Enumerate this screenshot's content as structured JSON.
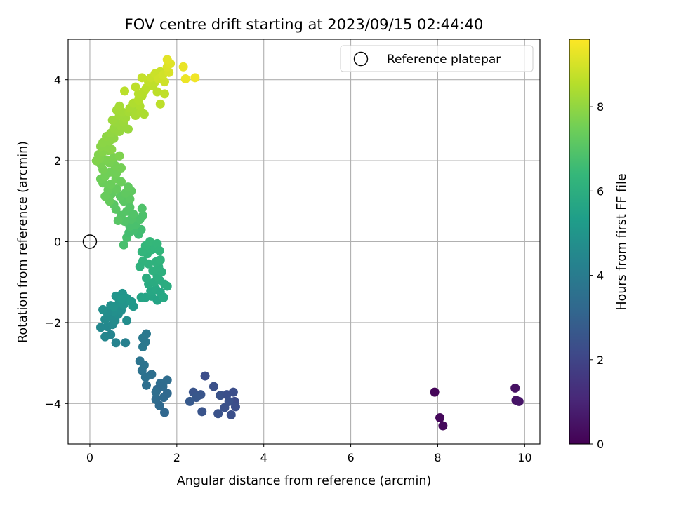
{
  "chart_data": {
    "type": "scatter",
    "title": "FOV centre drift starting at 2023/09/15 02:44:40",
    "xlabel": "Angular distance from reference (arcmin)",
    "ylabel": "Rotation from reference (arcmin)",
    "xlim": [
      -0.5,
      10.35
    ],
    "ylim": [
      -5.0,
      5.0
    ],
    "xticks": [
      0,
      2,
      4,
      6,
      8,
      10
    ],
    "yticks": [
      -4,
      -2,
      0,
      2,
      4
    ],
    "xtick_labels": [
      "0",
      "2",
      "4",
      "6",
      "8",
      "10"
    ],
    "ytick_labels": [
      "−4",
      "−2",
      "0",
      "2",
      "4"
    ],
    "grid": true,
    "legend": {
      "placement": "top-right",
      "entries": [
        {
          "label": "Reference platepar",
          "marker": "open-circle"
        }
      ]
    },
    "reference_point": {
      "x": 0,
      "y": 0
    },
    "colorbar": {
      "label": "Hours from first FF file",
      "colormap": "viridis",
      "range": [
        0,
        9.6
      ],
      "ticks": [
        0,
        2,
        4,
        6,
        8
      ],
      "tick_labels": [
        "0",
        "2",
        "4",
        "6",
        "8"
      ]
    },
    "viridis_stops": [
      "#440154",
      "#482878",
      "#3e4989",
      "#31688e",
      "#26828e",
      "#1f9e89",
      "#35b779",
      "#6ece58",
      "#b5de2b",
      "#fde725"
    ],
    "points": [
      [
        7.93,
        -3.72,
        0.15
      ],
      [
        8.05,
        -4.35,
        0.2
      ],
      [
        8.12,
        -4.55,
        0.25
      ],
      [
        9.78,
        -3.62,
        0.45
      ],
      [
        9.8,
        -3.92,
        0.5
      ],
      [
        9.87,
        -3.95,
        0.55
      ],
      [
        2.65,
        -3.32,
        2.3
      ],
      [
        2.85,
        -3.58,
        2.4
      ],
      [
        2.38,
        -3.72,
        2.5
      ],
      [
        2.55,
        -3.78,
        2.55
      ],
      [
        2.45,
        -3.85,
        2.6
      ],
      [
        2.3,
        -3.95,
        2.7
      ],
      [
        2.58,
        -4.2,
        2.5
      ],
      [
        3.0,
        -3.8,
        2.45
      ],
      [
        3.15,
        -3.78,
        2.35
      ],
      [
        3.3,
        -3.72,
        2.3
      ],
      [
        3.33,
        -3.95,
        2.2
      ],
      [
        3.35,
        -4.08,
        2.3
      ],
      [
        3.1,
        -4.1,
        2.4
      ],
      [
        3.25,
        -4.28,
        2.35
      ],
      [
        2.95,
        -4.25,
        2.45
      ],
      [
        3.2,
        -3.95,
        2.4
      ],
      [
        1.78,
        -3.42,
        3.4
      ],
      [
        1.62,
        -3.5,
        3.4
      ],
      [
        1.68,
        -3.58,
        3.35
      ],
      [
        1.55,
        -3.65,
        3.3
      ],
      [
        1.52,
        -3.9,
        3.35
      ],
      [
        1.7,
        -3.85,
        3.3
      ],
      [
        1.78,
        -3.75,
        3.25
      ],
      [
        1.6,
        -4.05,
        3.3
      ],
      [
        1.72,
        -4.22,
        3.2
      ],
      [
        1.42,
        -3.28,
        3.5
      ],
      [
        1.28,
        -3.35,
        3.55
      ],
      [
        1.3,
        -3.55,
        3.5
      ],
      [
        1.52,
        -3.72,
        3.45
      ],
      [
        1.2,
        -3.18,
        3.6
      ],
      [
        1.15,
        -2.95,
        3.7
      ],
      [
        1.25,
        -3.05,
        3.65
      ],
      [
        1.3,
        -2.28,
        3.85
      ],
      [
        1.22,
        -2.38,
        3.9
      ],
      [
        1.28,
        -2.48,
        3.85
      ],
      [
        1.22,
        -2.6,
        3.9
      ],
      [
        0.82,
        -2.5,
        4.2
      ],
      [
        0.6,
        -2.5,
        4.3
      ],
      [
        0.48,
        -2.3,
        4.35
      ],
      [
        0.35,
        -2.35,
        4.4
      ],
      [
        0.25,
        -2.12,
        4.5
      ],
      [
        0.4,
        -2.1,
        4.5
      ],
      [
        0.52,
        -2.05,
        4.55
      ],
      [
        0.35,
        -1.92,
        4.6
      ],
      [
        0.45,
        -1.85,
        4.65
      ],
      [
        0.58,
        -1.95,
        4.6
      ],
      [
        0.65,
        -1.8,
        4.7
      ],
      [
        0.55,
        -1.72,
        4.75
      ],
      [
        0.4,
        -1.75,
        4.7
      ],
      [
        0.3,
        -1.68,
        4.75
      ],
      [
        0.48,
        -1.58,
        4.8
      ],
      [
        0.62,
        -1.62,
        4.8
      ],
      [
        0.72,
        -1.7,
        4.75
      ],
      [
        0.85,
        -1.95,
        4.7
      ],
      [
        0.68,
        -1.5,
        4.9
      ],
      [
        0.6,
        -1.35,
        5.0
      ],
      [
        0.75,
        -1.28,
        5.0
      ],
      [
        0.85,
        -1.4,
        5.05
      ],
      [
        0.78,
        -1.55,
        4.95
      ],
      [
        0.95,
        -1.48,
        5.1
      ],
      [
        1.0,
        -1.6,
        5.1
      ],
      [
        0.72,
        -1.42,
        5.05
      ],
      [
        0.55,
        -1.6,
        4.9
      ],
      [
        1.28,
        -1.38,
        5.6
      ],
      [
        1.42,
        -1.35,
        5.65
      ],
      [
        1.55,
        -1.45,
        5.6
      ],
      [
        1.4,
        -1.22,
        5.7
      ],
      [
        1.52,
        -1.18,
        5.75
      ],
      [
        1.18,
        -1.38,
        5.6
      ],
      [
        1.62,
        -1.25,
        5.7
      ],
      [
        1.7,
        -1.38,
        5.75
      ],
      [
        1.35,
        -1.05,
        5.85
      ],
      [
        1.48,
        -1.0,
        5.9
      ],
      [
        1.6,
        -0.95,
        5.95
      ],
      [
        1.72,
        -1.05,
        5.9
      ],
      [
        1.78,
        -1.1,
        5.95
      ],
      [
        1.55,
        -0.85,
        6.0
      ],
      [
        1.65,
        -0.75,
        6.05
      ],
      [
        1.3,
        -0.9,
        5.95
      ],
      [
        1.45,
        -0.72,
        6.1
      ],
      [
        1.58,
        -0.62,
        6.1
      ],
      [
        1.52,
        -0.5,
        6.15
      ],
      [
        1.62,
        -0.45,
        6.2
      ],
      [
        1.35,
        -0.55,
        6.15
      ],
      [
        1.22,
        -0.48,
        6.2
      ],
      [
        1.15,
        -0.62,
        6.15
      ],
      [
        1.32,
        -0.3,
        6.25
      ],
      [
        1.42,
        -0.2,
        6.3
      ],
      [
        1.5,
        -0.15,
        6.3
      ],
      [
        1.28,
        -0.1,
        6.35
      ],
      [
        1.38,
        0.0,
        6.4
      ],
      [
        1.55,
        -0.05,
        6.35
      ],
      [
        1.6,
        -0.22,
        6.3
      ],
      [
        1.2,
        -0.25,
        6.3
      ],
      [
        1.12,
        0.18,
        6.6
      ],
      [
        1.18,
        0.3,
        6.65
      ],
      [
        1.0,
        0.28,
        6.7
      ],
      [
        0.85,
        0.1,
        6.75
      ],
      [
        0.9,
        0.22,
        6.7
      ],
      [
        0.78,
        -0.08,
        6.75
      ],
      [
        0.92,
        0.38,
        6.8
      ],
      [
        1.05,
        0.42,
        6.8
      ],
      [
        1.15,
        0.55,
        6.85
      ],
      [
        1.22,
        0.65,
        6.85
      ],
      [
        1.2,
        0.82,
        6.9
      ],
      [
        0.95,
        0.55,
        6.9
      ],
      [
        0.8,
        0.5,
        6.95
      ],
      [
        0.72,
        0.65,
        7.0
      ],
      [
        0.85,
        0.75,
        7.0
      ],
      [
        0.92,
        0.85,
        7.0
      ],
      [
        1.0,
        0.68,
        6.95
      ],
      [
        0.65,
        0.52,
        7.05
      ],
      [
        0.6,
        0.8,
        7.1
      ],
      [
        0.55,
        0.92,
        7.1
      ],
      [
        0.78,
        1.0,
        7.1
      ],
      [
        0.92,
        1.05,
        7.15
      ],
      [
        0.7,
        1.12,
        7.15
      ],
      [
        0.82,
        1.2,
        7.2
      ],
      [
        0.95,
        1.25,
        7.2
      ],
      [
        0.88,
        1.35,
        7.25
      ],
      [
        0.5,
        1.18,
        7.25
      ],
      [
        0.62,
        1.3,
        7.3
      ],
      [
        0.45,
        1.0,
        7.3
      ],
      [
        0.35,
        1.12,
        7.35
      ],
      [
        0.42,
        1.28,
        7.35
      ],
      [
        0.3,
        1.45,
        7.4
      ],
      [
        0.48,
        1.42,
        7.4
      ],
      [
        0.6,
        1.55,
        7.45
      ],
      [
        0.72,
        1.48,
        7.4
      ],
      [
        0.25,
        1.55,
        7.45
      ],
      [
        0.35,
        1.62,
        7.5
      ],
      [
        0.48,
        1.72,
        7.5
      ],
      [
        0.62,
        1.7,
        7.5
      ],
      [
        0.72,
        1.82,
        7.55
      ],
      [
        0.58,
        1.88,
        7.55
      ],
      [
        0.45,
        1.95,
        7.6
      ],
      [
        0.3,
        1.78,
        7.55
      ],
      [
        0.25,
        1.92,
        7.6
      ],
      [
        0.38,
        2.02,
        7.65
      ],
      [
        0.55,
        2.08,
        7.65
      ],
      [
        0.68,
        2.12,
        7.7
      ],
      [
        0.22,
        2.05,
        7.7
      ],
      [
        0.15,
        2.0,
        7.75
      ],
      [
        0.2,
        2.15,
        7.75
      ],
      [
        0.3,
        2.22,
        7.8
      ],
      [
        0.42,
        2.25,
        7.8
      ],
      [
        0.25,
        2.35,
        7.85
      ],
      [
        0.38,
        2.35,
        7.85
      ],
      [
        0.5,
        2.28,
        7.85
      ],
      [
        0.3,
        2.45,
        7.9
      ],
      [
        0.45,
        2.48,
        7.9
      ],
      [
        0.55,
        2.55,
        7.95
      ],
      [
        0.38,
        2.6,
        7.95
      ],
      [
        0.48,
        2.68,
        8.0
      ],
      [
        0.62,
        2.72,
        8.0
      ],
      [
        0.55,
        2.8,
        8.05
      ],
      [
        0.68,
        2.72,
        8.05
      ],
      [
        0.72,
        2.85,
        8.1
      ],
      [
        0.6,
        2.95,
        8.1
      ],
      [
        0.52,
        3.0,
        8.15
      ],
      [
        0.78,
        2.95,
        8.15
      ],
      [
        0.88,
        2.78,
        8.1
      ],
      [
        0.82,
        3.05,
        8.2
      ],
      [
        0.68,
        3.12,
        8.2
      ],
      [
        0.75,
        3.2,
        8.25
      ],
      [
        0.62,
        3.25,
        8.25
      ],
      [
        0.9,
        3.2,
        8.3
      ],
      [
        1.0,
        3.25,
        8.3
      ],
      [
        1.1,
        3.2,
        8.35
      ],
      [
        0.68,
        3.35,
        8.3
      ],
      [
        0.92,
        3.3,
        8.35
      ],
      [
        1.05,
        3.12,
        8.35
      ],
      [
        1.18,
        3.2,
        8.4
      ],
      [
        1.25,
        3.15,
        8.4
      ],
      [
        1.15,
        3.35,
        8.45
      ],
      [
        1.0,
        3.42,
        8.45
      ],
      [
        1.12,
        3.5,
        8.5
      ],
      [
        1.2,
        3.6,
        8.5
      ],
      [
        1.25,
        3.72,
        8.55
      ],
      [
        1.12,
        3.65,
        8.55
      ],
      [
        1.3,
        3.8,
        8.6
      ],
      [
        1.45,
        3.85,
        8.65
      ],
      [
        1.5,
        3.95,
        8.7
      ],
      [
        1.35,
        3.95,
        8.7
      ],
      [
        1.55,
        3.7,
        8.65
      ],
      [
        1.72,
        3.65,
        8.7
      ],
      [
        1.62,
        3.4,
        8.65
      ],
      [
        0.8,
        3.72,
        8.6
      ],
      [
        1.05,
        3.82,
        8.65
      ],
      [
        1.2,
        4.05,
        8.75
      ],
      [
        1.4,
        4.05,
        8.8
      ],
      [
        1.5,
        4.15,
        8.85
      ],
      [
        1.62,
        4.2,
        8.85
      ],
      [
        1.58,
        4.02,
        8.9
      ],
      [
        1.72,
        3.95,
        8.9
      ],
      [
        1.68,
        4.12,
        8.95
      ],
      [
        1.82,
        4.18,
        9.05
      ],
      [
        1.78,
        4.32,
        9.1
      ],
      [
        1.85,
        4.4,
        9.15
      ],
      [
        1.78,
        4.5,
        9.2
      ],
      [
        2.15,
        4.32,
        9.3
      ],
      [
        2.2,
        4.02,
        9.35
      ],
      [
        2.42,
        4.05,
        9.4
      ]
    ]
  }
}
